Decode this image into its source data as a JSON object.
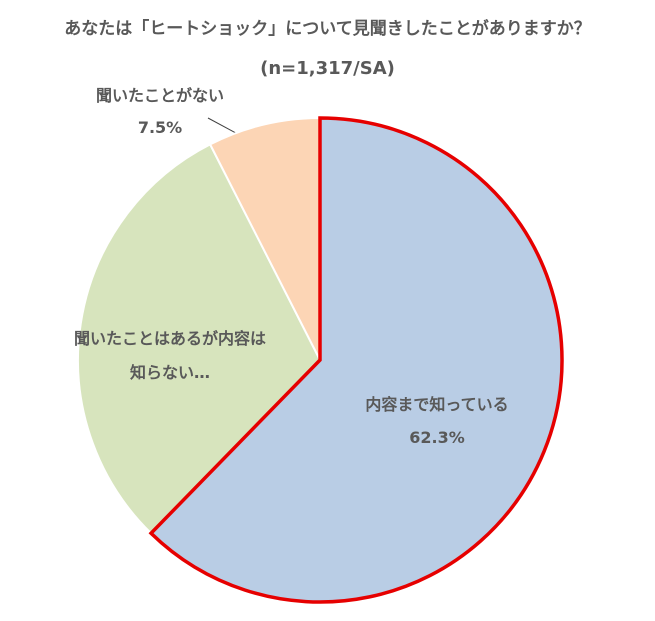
{
  "chart_data": {
    "type": "pie",
    "title": "あなたは「ヒートショック」について見聞きしたことがありますか？",
    "subtitle": "(n=1,317/SA)",
    "categories": [
      "内容まで知っている",
      "聞いたことはあるが内容は知らない…",
      "聞いたことがない"
    ],
    "values": [
      62.3,
      30.2,
      7.5
    ],
    "value_labels": [
      "62.3%",
      null,
      "7.5%"
    ],
    "colors": [
      "#b9cde5",
      "#d7e4bd",
      "#fcd5b5"
    ],
    "highlight_color": "#e60000"
  }
}
